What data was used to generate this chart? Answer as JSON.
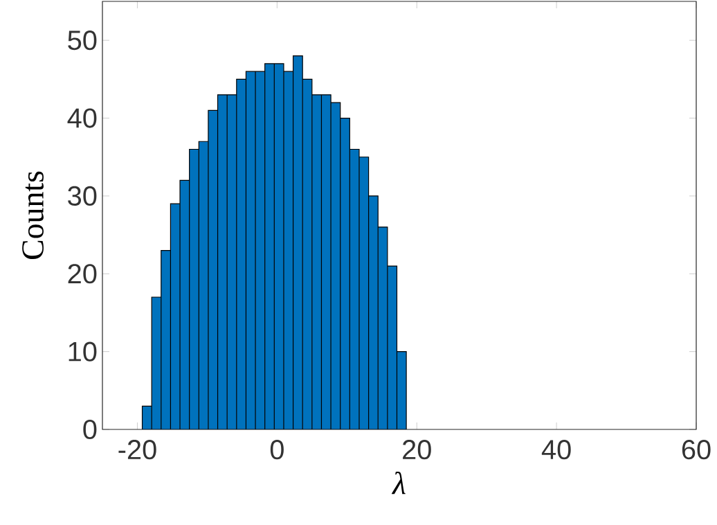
{
  "chart_data": {
    "type": "histogram",
    "xlabel": "λ",
    "ylabel": "Counts",
    "bins": [
      -19.3,
      -17.95,
      -16.6,
      -15.25,
      -13.9,
      -12.55,
      -11.2,
      -9.85,
      -8.5,
      -7.15,
      -5.8,
      -4.45,
      -3.1,
      -1.75,
      -0.4,
      0.95,
      2.3,
      3.65,
      5.0,
      6.35,
      7.7,
      9.05,
      10.4,
      11.75,
      13.1,
      14.45,
      15.8,
      17.15,
      18.5
    ],
    "values": [
      3,
      17,
      23,
      29,
      32,
      36,
      37,
      41,
      43,
      43,
      45,
      46,
      46,
      47,
      47,
      46,
      48,
      45,
      43,
      43,
      42,
      40,
      36,
      35,
      30,
      26,
      21,
      10
    ],
    "color": "#0072bd",
    "xlim": [
      -25,
      60
    ],
    "xticks": [
      -20,
      0,
      20,
      40,
      60
    ],
    "ylim": [
      0,
      55
    ],
    "yticks": [
      0,
      10,
      20,
      30,
      40,
      50
    ],
    "grid": false
  }
}
